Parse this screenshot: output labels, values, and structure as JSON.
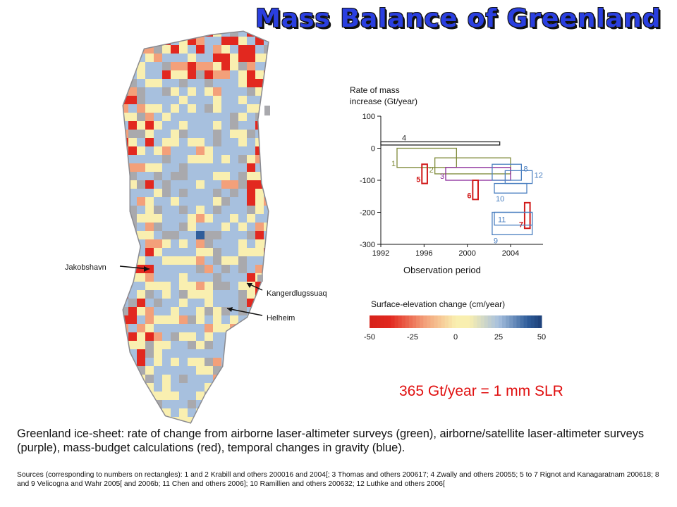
{
  "slide": {
    "title": "Mass Balance of Greenland",
    "slr_note": "365 Gt/year = 1 mm SLR",
    "caption": "Greenland ice-sheet: rate of change from airborne laser-altimeter surveys (green), airborne/satellite laser-altimeter surveys (purple), mass-budget calculations (red), temporal changes in gravity (blue).",
    "sources": "Sources (corresponding to numbers on rectangles): 1 and 2 Krabill and others 200016 and 2004[; 3 Thomas and others 200617; 4 Zwally and others 20055; 5 to 7 Rignot and Kanagaratnam 200618; 8 and 9 Velicogna and Wahr 2005[ and 2006b; 11 Chen and others 2006]; 10 Ramillien and others 200632; 12 Luthke and others 2006["
  },
  "map": {
    "labels": {
      "jakobshavn": "Jakobshavn",
      "kangerdlugssuaq": "Kangerdlugssuaq",
      "helheim": "Helheim"
    },
    "colors": {
      "land": "#a9a9ad",
      "coast": "#8b8b90"
    }
  },
  "mass_chart": {
    "ylabel_line1": "Rate of mass",
    "ylabel_line2": "increase (Gt/year)",
    "xlabel": "Observation period",
    "y_ticks": [
      "100",
      "0",
      "-100",
      "-200",
      "-300"
    ],
    "x_ticks": [
      "1992",
      "1996",
      "2000",
      "2004"
    ],
    "colors": {
      "green": "#7f8a3a",
      "purple": "#8a2a9a",
      "red": "#d11a1a",
      "blue": "#4a7fc0",
      "black": "#222222"
    }
  },
  "chart_data": {
    "type": "other",
    "xlabel": "Observation period",
    "ylabel": "Rate of mass increase (Gt/year)",
    "xlim": [
      1992,
      2007
    ],
    "ylim": [
      -300,
      100
    ],
    "rectangles": [
      {
        "label": "1",
        "method": "green",
        "x": [
          1993.5,
          1999
        ],
        "y": [
          -60,
          0
        ]
      },
      {
        "label": "2",
        "method": "green",
        "x": [
          1997,
          2004
        ],
        "y": [
          -80,
          -30
        ]
      },
      {
        "label": "3",
        "method": "purple",
        "x": [
          1998,
          2004
        ],
        "y": [
          -100,
          -60
        ]
      },
      {
        "label": "4",
        "method": "black",
        "x": [
          1992,
          2003
        ],
        "y": [
          10,
          20
        ]
      },
      {
        "label": "5",
        "method": "red",
        "x": [
          1995.8,
          1996.3
        ],
        "y": [
          -110,
          -50
        ]
      },
      {
        "label": "6",
        "method": "red",
        "x": [
          2000.5,
          2001
        ],
        "y": [
          -160,
          -100
        ]
      },
      {
        "label": "7",
        "method": "red",
        "x": [
          2005.3,
          2005.8
        ],
        "y": [
          -250,
          -170
        ]
      },
      {
        "label": "8",
        "method": "blue",
        "x": [
          2002.3,
          2005
        ],
        "y": [
          -100,
          -50
        ]
      },
      {
        "label": "9",
        "method": "blue",
        "x": [
          2002.3,
          2006
        ],
        "y": [
          -270,
          -200
        ]
      },
      {
        "label": "10",
        "method": "blue",
        "x": [
          2002.5,
          2005.5
        ],
        "y": [
          -140,
          -110
        ]
      },
      {
        "label": "11",
        "method": "blue",
        "x": [
          2002.5,
          2006
        ],
        "y": [
          -240,
          -200
        ]
      },
      {
        "label": "12",
        "method": "blue",
        "x": [
          2003.5,
          2006
        ],
        "y": [
          -110,
          -70
        ]
      }
    ]
  },
  "elevation_legend": {
    "title": "Surface-elevation change (cm/year)",
    "ticks": [
      "-50",
      "-25",
      "0",
      "25",
      "50"
    ],
    "colors": [
      "#e2281f",
      "#f3a07a",
      "#f9efb0",
      "#a7c0de",
      "#2f5d9a"
    ]
  }
}
